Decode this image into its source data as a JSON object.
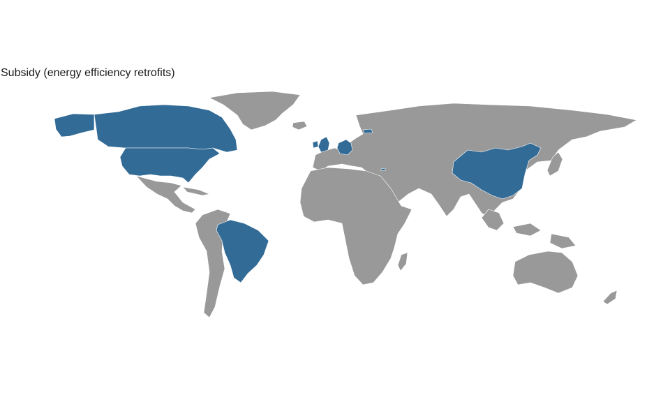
{
  "title": "Subsidy (energy efficiency retrofits)",
  "colors": {
    "highlight": "#336b97",
    "other": "#999999",
    "border": "#ffffff",
    "background": "#ffffff"
  },
  "highlighted_countries": [
    "United States",
    "Canada",
    "Brazil",
    "China",
    "United Kingdom",
    "Ireland",
    "Germany",
    "Latvia",
    "Cyprus"
  ]
}
